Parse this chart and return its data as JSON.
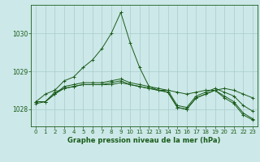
{
  "background_color": "#cce8e8",
  "grid_color": "#aacccc",
  "line_color": "#1a5c1a",
  "title": "Graphe pression niveau de la mer (hPa)",
  "xlim": [
    -0.5,
    23.5
  ],
  "ylim": [
    1027.55,
    1030.75
  ],
  "yticks": [
    1028,
    1029,
    1030
  ],
  "xticks": [
    0,
    1,
    2,
    3,
    4,
    5,
    6,
    7,
    8,
    9,
    10,
    11,
    12,
    13,
    14,
    15,
    16,
    17,
    18,
    19,
    20,
    21,
    22,
    23
  ],
  "series": [
    [
      1028.2,
      1028.4,
      1028.5,
      1028.75,
      1028.85,
      1029.1,
      1029.3,
      1029.6,
      1030.0,
      1030.55,
      1029.75,
      1029.1,
      1028.6,
      1028.5,
      1028.5,
      1028.45,
      1028.4,
      1028.45,
      1028.5,
      1028.5,
      1028.55,
      1028.5,
      1028.4,
      1028.3
    ],
    [
      1028.15,
      1028.2,
      1028.45,
      1028.55,
      1028.6,
      1028.65,
      1028.65,
      1028.65,
      1028.65,
      1028.7,
      1028.65,
      1028.6,
      1028.55,
      1028.5,
      1028.45,
      1028.05,
      1028.0,
      1028.3,
      1028.4,
      1028.5,
      1028.35,
      1028.2,
      1027.9,
      1027.75
    ],
    [
      1028.2,
      1028.2,
      1028.4,
      1028.55,
      1028.6,
      1028.65,
      1028.65,
      1028.65,
      1028.7,
      1028.75,
      1028.65,
      1028.6,
      1028.55,
      1028.5,
      1028.45,
      1028.05,
      1028.0,
      1028.3,
      1028.4,
      1028.5,
      1028.3,
      1028.15,
      1027.85,
      1027.72
    ],
    [
      1028.2,
      1028.2,
      1028.4,
      1028.6,
      1028.65,
      1028.7,
      1028.7,
      1028.7,
      1028.75,
      1028.8,
      1028.7,
      1028.65,
      1028.6,
      1028.55,
      1028.5,
      1028.1,
      1028.05,
      1028.35,
      1028.45,
      1028.55,
      1028.45,
      1028.35,
      1028.1,
      1027.95
    ]
  ]
}
